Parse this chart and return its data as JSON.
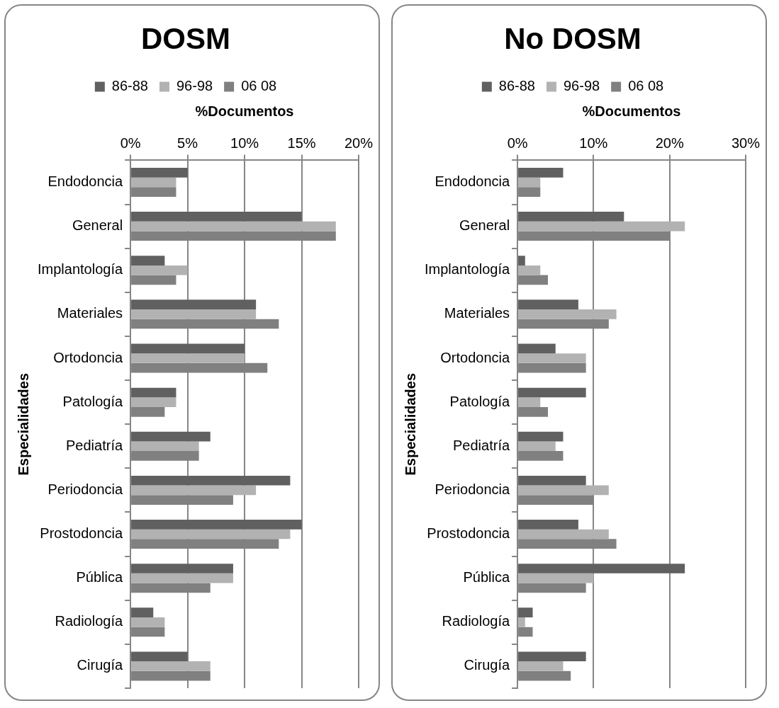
{
  "chart_data": [
    {
      "type": "bar",
      "orientation": "horizontal",
      "title": "DOSM",
      "xlabel": "%Documentos",
      "ylabel": "Especialidades",
      "legend": "top",
      "grid": "x",
      "categories": [
        "Endodoncia",
        "General",
        "Implantología",
        "Materiales",
        "Ortodoncia",
        "Patología",
        "Pediatría",
        "Periodoncia",
        "Prostodoncia",
        "Pública",
        "Radiología",
        "Cirugía"
      ],
      "series": [
        {
          "name": "86-88",
          "color": "#606060",
          "values": [
            5,
            15,
            3,
            11,
            10,
            4,
            7,
            14,
            15,
            9,
            2,
            5
          ]
        },
        {
          "name": "96-98",
          "color": "#b2b2b2",
          "values": [
            4,
            18,
            5,
            11,
            10,
            4,
            6,
            11,
            14,
            9,
            3,
            7
          ]
        },
        {
          "name": "06 08",
          "color": "#808080",
          "values": [
            4,
            18,
            4,
            13,
            12,
            3,
            6,
            9,
            13,
            7,
            3,
            7
          ]
        }
      ],
      "xlim": [
        0,
        20
      ],
      "xticks": [
        {
          "value": 0,
          "label": "0%"
        },
        {
          "value": 5,
          "label": "5%"
        },
        {
          "value": 10,
          "label": "10%"
        },
        {
          "value": 15,
          "label": "15%"
        },
        {
          "value": 20,
          "label": "20%"
        }
      ]
    },
    {
      "type": "bar",
      "orientation": "horizontal",
      "title": "No DOSM",
      "xlabel": "%Documentos",
      "ylabel": "Especialidades",
      "legend": "top",
      "grid": "x",
      "categories": [
        "Endodoncia",
        "General",
        "Implantología",
        "Materiales",
        "Ortodoncia",
        "Patología",
        "Pediatría",
        "Periodoncia",
        "Prostodoncia",
        "Pública",
        "Radiología",
        "Cirugía"
      ],
      "series": [
        {
          "name": "86-88",
          "color": "#606060",
          "values": [
            6,
            14,
            1,
            8,
            5,
            9,
            6,
            9,
            8,
            22,
            2,
            9
          ]
        },
        {
          "name": "96-98",
          "color": "#b2b2b2",
          "values": [
            3,
            22,
            3,
            13,
            9,
            3,
            5,
            12,
            12,
            10,
            1,
            6
          ]
        },
        {
          "name": "06 08",
          "color": "#808080",
          "values": [
            3,
            20,
            4,
            12,
            9,
            4,
            6,
            10,
            13,
            9,
            2,
            7
          ]
        }
      ],
      "xlim": [
        0,
        30
      ],
      "xticks": [
        {
          "value": 0,
          "label": "0%"
        },
        {
          "value": 10,
          "label": "10%"
        },
        {
          "value": 20,
          "label": "20%"
        },
        {
          "value": 30,
          "label": "30%"
        }
      ]
    }
  ]
}
